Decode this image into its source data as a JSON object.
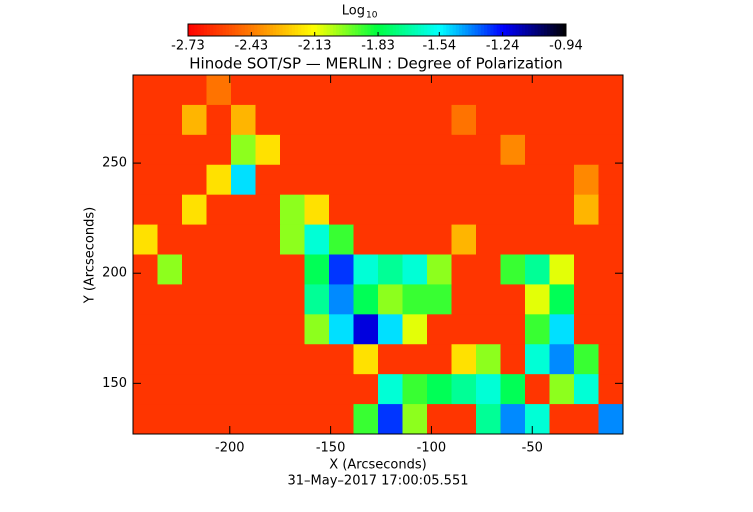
{
  "chart_data": {
    "type": "heatmap",
    "title": "Hinode SOT/SP — MERLIN : Degree of Polarization",
    "x_label": "X (Arcseconds)",
    "y_label": "Y (Arcseconds)",
    "footer": "31–May–2017 17:00:05.551",
    "colorbar_label": "Log",
    "colorbar_label_sub": "10",
    "colorbar_lim": [
      -2.73,
      -0.94
    ],
    "colorbar_ticks": [
      -2.73,
      -2.43,
      -2.13,
      -1.83,
      -1.54,
      -1.24,
      -0.94
    ],
    "colormap": [
      "#ff0000",
      "#ff7a00",
      "#ffff00",
      "#00ff40",
      "#00ffff",
      "#0000ff",
      "#000000"
    ],
    "xlim": [
      -248,
      -5
    ],
    "ylim": [
      127,
      290
    ],
    "xticks": [
      -200,
      -150,
      -100,
      -50
    ],
    "yticks": [
      150,
      200,
      250
    ],
    "z": [
      [
        -2.6,
        -2.6,
        -2.6,
        -2.45,
        -2.6,
        -2.6,
        -2.6,
        -2.6,
        -2.6,
        -2.6,
        -2.6,
        -2.6,
        -2.6,
        -2.6,
        -2.6,
        -2.6,
        -2.6,
        -2.6,
        -2.6,
        -2.6
      ],
      [
        -2.6,
        -2.6,
        -2.3,
        -2.6,
        -2.3,
        -2.6,
        -2.6,
        -2.6,
        -2.6,
        -2.6,
        -2.6,
        -2.6,
        -2.6,
        -2.45,
        -2.6,
        -2.6,
        -2.6,
        -2.6,
        -2.6,
        -2.6
      ],
      [
        -2.6,
        -2.6,
        -2.6,
        -2.6,
        -2.0,
        -2.2,
        -2.6,
        -2.6,
        -2.6,
        -2.6,
        -2.6,
        -2.6,
        -2.6,
        -2.6,
        -2.6,
        -2.4,
        -2.6,
        -2.6,
        -2.6,
        -2.6
      ],
      [
        -2.6,
        -2.6,
        -2.6,
        -2.2,
        -1.5,
        -2.6,
        -2.6,
        -2.6,
        -2.6,
        -2.6,
        -2.6,
        -2.6,
        -2.6,
        -2.6,
        -2.6,
        -2.6,
        -2.6,
        -2.6,
        -2.4,
        -2.6
      ],
      [
        -2.6,
        -2.6,
        -2.2,
        -2.6,
        -2.6,
        -2.6,
        -2.0,
        -2.2,
        -2.6,
        -2.6,
        -2.6,
        -2.6,
        -2.6,
        -2.6,
        -2.6,
        -2.6,
        -2.6,
        -2.6,
        -2.3,
        -2.6
      ],
      [
        -2.2,
        -2.6,
        -2.6,
        -2.6,
        -2.6,
        -2.6,
        -2.0,
        -1.6,
        -1.9,
        -2.6,
        -2.6,
        -2.6,
        -2.6,
        -2.3,
        -2.6,
        -2.6,
        -2.6,
        -2.6,
        -2.6,
        -2.6
      ],
      [
        -2.6,
        -2.0,
        -2.6,
        -2.6,
        -2.6,
        -2.6,
        -2.6,
        -1.8,
        -1.3,
        -1.6,
        -1.7,
        -1.6,
        -2.0,
        -2.6,
        -2.6,
        -1.9,
        -1.7,
        -2.1,
        -2.6,
        -2.6
      ],
      [
        -2.6,
        -2.6,
        -2.6,
        -2.6,
        -2.6,
        -2.6,
        -2.6,
        -1.7,
        -1.4,
        -1.8,
        -2.0,
        -1.9,
        -1.9,
        -2.6,
        -2.6,
        -2.6,
        -2.1,
        -1.8,
        -2.6,
        -2.6
      ],
      [
        -2.6,
        -2.6,
        -2.6,
        -2.6,
        -2.6,
        -2.6,
        -2.6,
        -2.0,
        -1.5,
        -1.2,
        -1.5,
        -2.1,
        -2.6,
        -2.6,
        -2.6,
        -2.6,
        -1.9,
        -1.5,
        -2.6,
        -2.6
      ],
      [
        -2.6,
        -2.6,
        -2.6,
        -2.6,
        -2.6,
        -2.6,
        -2.6,
        -2.6,
        -2.6,
        -2.2,
        -2.6,
        -2.6,
        -2.6,
        -2.2,
        -2.0,
        -2.6,
        -1.6,
        -1.4,
        -1.9,
        -2.6
      ],
      [
        -2.6,
        -2.6,
        -2.6,
        -2.6,
        -2.6,
        -2.6,
        -2.6,
        -2.6,
        -2.6,
        -2.6,
        -1.6,
        -1.9,
        -1.8,
        -1.7,
        -1.6,
        -1.8,
        -2.6,
        -2.0,
        -1.6,
        -2.6
      ],
      [
        -2.6,
        -2.6,
        -2.6,
        -2.6,
        -2.6,
        -2.6,
        -2.6,
        -2.6,
        -2.6,
        -1.9,
        -1.3,
        -2.0,
        -2.6,
        -2.6,
        -1.7,
        -1.4,
        -1.6,
        -2.6,
        -2.6,
        -1.4
      ]
    ]
  }
}
